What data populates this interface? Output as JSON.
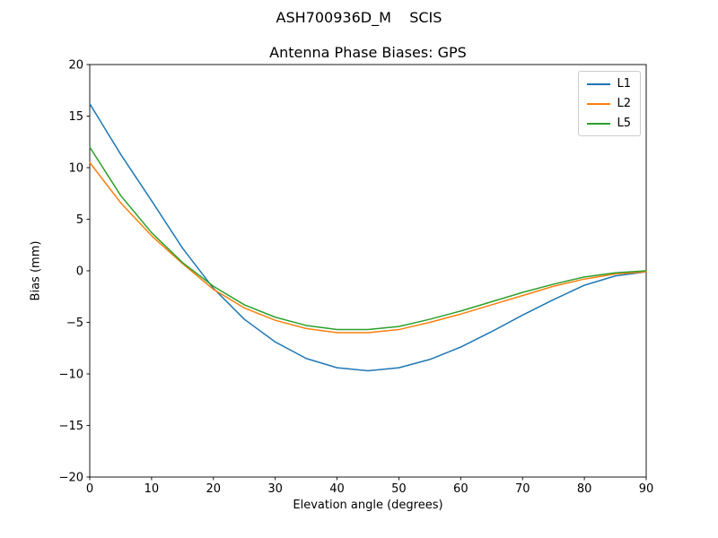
{
  "chart_data": {
    "type": "line",
    "suptitle": "ASH700936D_M    SCIS",
    "title": "Antenna Phase Biases: GPS",
    "xlabel": "Elevation angle (degrees)",
    "ylabel": "Bias (mm)",
    "xlim": [
      0,
      90
    ],
    "ylim": [
      -20,
      20
    ],
    "xticks": [
      0,
      10,
      20,
      30,
      40,
      50,
      60,
      70,
      80,
      90
    ],
    "yticks": [
      -20,
      -15,
      -10,
      -5,
      0,
      5,
      10,
      15,
      20
    ],
    "grid": false,
    "legend_position": "upper right",
    "x": [
      0,
      5,
      10,
      15,
      20,
      25,
      30,
      35,
      40,
      45,
      50,
      55,
      60,
      65,
      70,
      75,
      80,
      85,
      90
    ],
    "series": [
      {
        "name": "L1",
        "color": "#1f77b4",
        "values": [
          16.2,
          11.3,
          6.8,
          2.2,
          -1.7,
          -4.7,
          -6.9,
          -8.5,
          -9.4,
          -9.7,
          -9.4,
          -8.6,
          -7.4,
          -5.9,
          -4.3,
          -2.8,
          -1.4,
          -0.5,
          -0.1
        ]
      },
      {
        "name": "L2",
        "color": "#ff7f0e",
        "values": [
          10.5,
          6.6,
          3.4,
          0.7,
          -1.8,
          -3.6,
          -4.8,
          -5.6,
          -6.0,
          -6.0,
          -5.7,
          -5.0,
          -4.2,
          -3.3,
          -2.4,
          -1.5,
          -0.8,
          -0.3,
          -0.1
        ]
      },
      {
        "name": "L5",
        "color": "#2ca02c",
        "values": [
          12.0,
          7.3,
          3.7,
          0.8,
          -1.5,
          -3.3,
          -4.5,
          -5.3,
          -5.7,
          -5.7,
          -5.4,
          -4.7,
          -3.9,
          -3.0,
          -2.1,
          -1.3,
          -0.6,
          -0.2,
          0.0
        ]
      }
    ]
  }
}
